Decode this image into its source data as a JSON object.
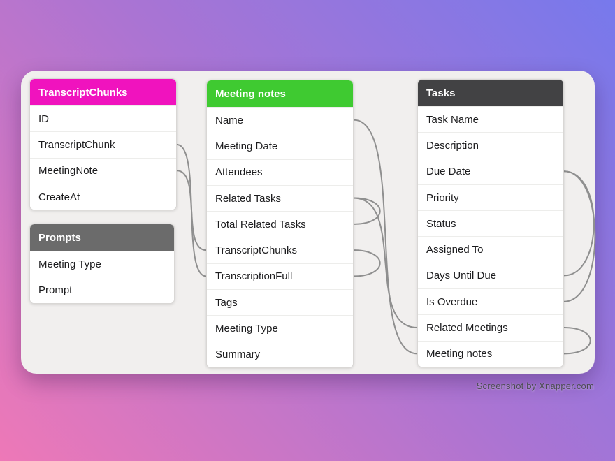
{
  "watermark": "Screenshot by Xnapper.com",
  "colors": {
    "line": "#8f8f8f",
    "card_background": "#f1efee",
    "gradient_top_right": "#7779ec",
    "gradient_middle": "#aa74d3",
    "gradient_bottom_left": "#ee78b7"
  },
  "tables": {
    "transcript_chunks": {
      "title": "TranscriptChunks",
      "header_color": "#f013be",
      "rows": [
        "ID",
        "TranscriptChunk",
        "MeetingNote",
        "CreateAt"
      ]
    },
    "prompts": {
      "title": "Prompts",
      "header_color": "#6b6b6b",
      "rows": [
        "Meeting Type",
        "Prompt"
      ]
    },
    "meeting_notes": {
      "title": "Meeting notes",
      "header_color": "#3fca31",
      "rows": [
        "Name",
        "Meeting Date",
        "Attendees",
        "Related Tasks",
        "Total Related Tasks",
        "TranscriptChunks",
        "TranscriptionFull",
        "Tags",
        "Meeting Type",
        "Summary"
      ]
    },
    "tasks": {
      "title": "Tasks",
      "header_color": "#424244",
      "rows": [
        "Task Name",
        "Description",
        "Due Date",
        "Priority",
        "Status",
        "Assigned To",
        "Days Until Due",
        "Is Overdue",
        "Related Meetings",
        "Meeting notes"
      ]
    }
  },
  "connections": [
    {
      "from_table": "transcript_chunks",
      "from_field": "TranscriptChunk",
      "from_side": "right",
      "to_table": "meeting_notes",
      "to_field": "TranscriptionFull",
      "to_side": "left"
    },
    {
      "from_table": "transcript_chunks",
      "from_field": "MeetingNote",
      "from_side": "right",
      "to_table": "meeting_notes",
      "to_field": "TranscriptChunks",
      "to_side": "left"
    },
    {
      "from_table": "meeting_notes",
      "from_field": "Related Tasks",
      "from_side": "right",
      "to_table": "meeting_notes",
      "to_field": "Total Related Tasks",
      "to_side": "right"
    },
    {
      "from_table": "meeting_notes",
      "from_field": "TranscriptChunks",
      "from_side": "right",
      "to_table": "meeting_notes",
      "to_field": "TranscriptionFull",
      "to_side": "right"
    },
    {
      "from_table": "meeting_notes",
      "from_field": "Name",
      "from_side": "right",
      "to_table": "tasks",
      "to_field": "Meeting notes",
      "to_side": "left"
    },
    {
      "from_table": "meeting_notes",
      "from_field": "Related Tasks",
      "from_side": "right",
      "to_table": "tasks",
      "to_field": "Related Meetings",
      "to_side": "left"
    },
    {
      "from_table": "tasks",
      "from_field": "Due Date",
      "from_side": "right",
      "to_table": "tasks",
      "to_field": "Days Until Due",
      "to_side": "right"
    },
    {
      "from_table": "tasks",
      "from_field": "Due Date",
      "from_side": "right",
      "to_table": "tasks",
      "to_field": "Is Overdue",
      "to_side": "right"
    },
    {
      "from_table": "tasks",
      "from_field": "Related Meetings",
      "from_side": "right",
      "to_table": "tasks",
      "to_field": "Meeting notes",
      "to_side": "right"
    }
  ]
}
